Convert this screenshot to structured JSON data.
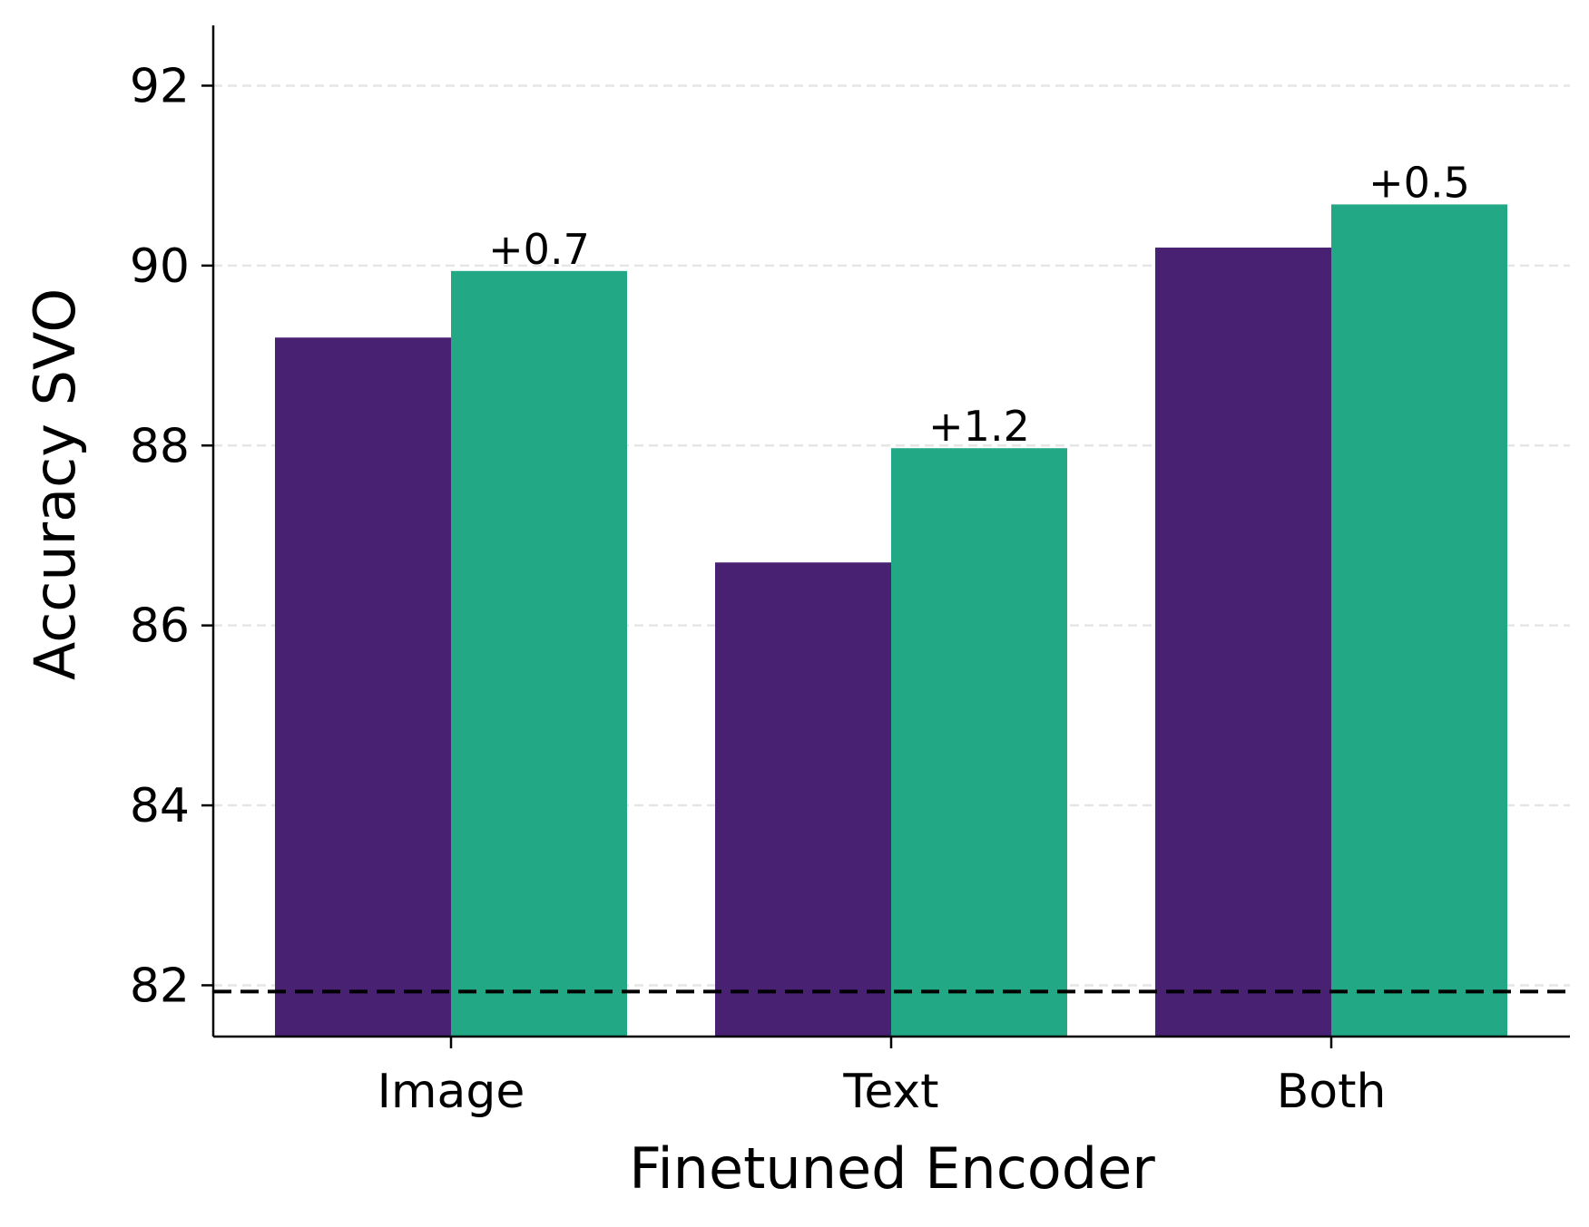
{
  "chart_data": {
    "type": "bar",
    "title": "",
    "xlabel": "Finetuned Encoder",
    "ylabel": "Accuracy SVO",
    "categories": [
      "Image",
      "Text",
      "Both"
    ],
    "series": [
      {
        "values": [
          89.2,
          86.7,
          90.2
        ],
        "color": "#482173"
      },
      {
        "values": [
          89.94,
          87.97,
          90.68
        ],
        "color": "#22a884"
      }
    ],
    "bar_labels": [
      "+0.7",
      "+1.2",
      "+0.5"
    ],
    "reference_line": {
      "value": 81.93,
      "style": "dashed",
      "color": "#000000"
    },
    "ylim": [
      81.43,
      92.67
    ],
    "yticks": [
      82,
      84,
      86,
      88,
      90,
      92
    ],
    "grid": {
      "axis": "y",
      "style": "dashed",
      "color": "#e6e6e6"
    },
    "legend": "none"
  }
}
